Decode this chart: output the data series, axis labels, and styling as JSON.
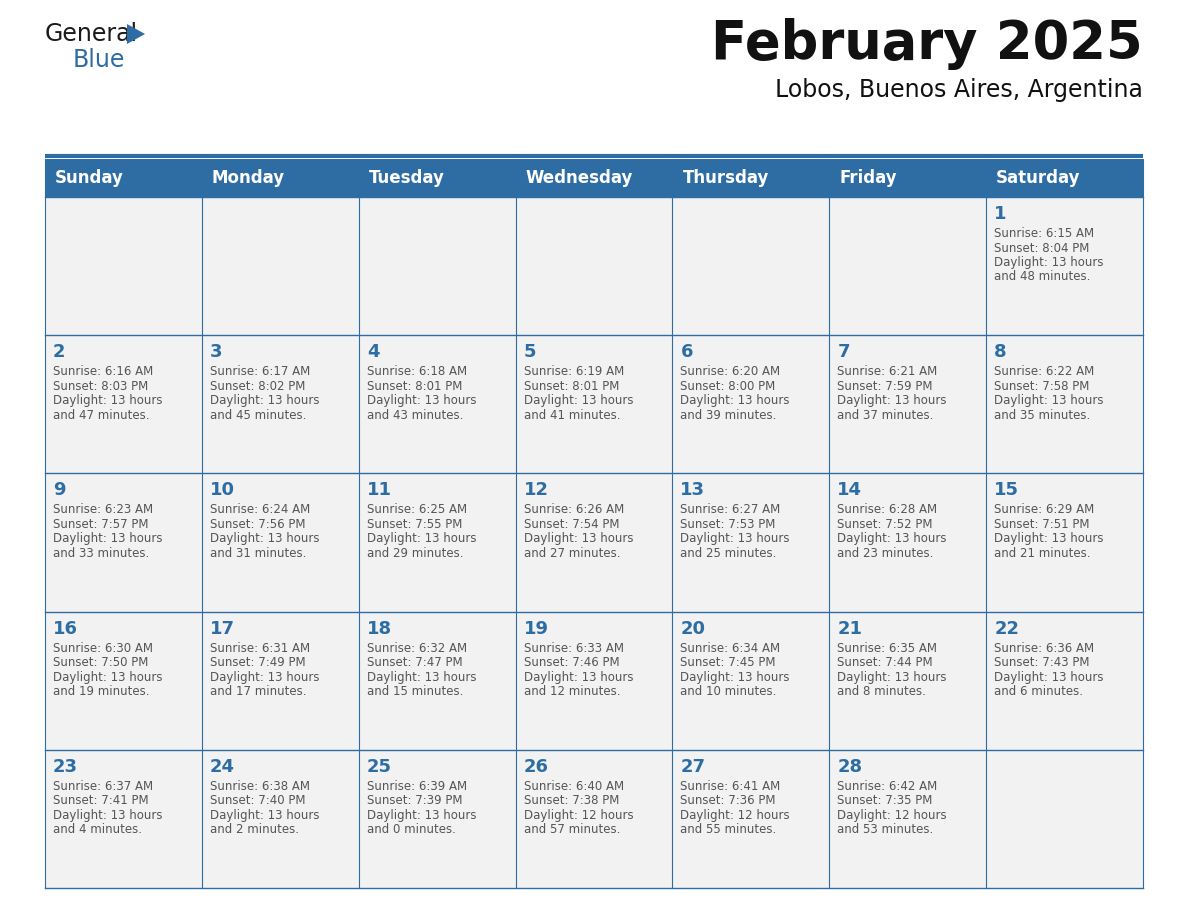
{
  "title": "February 2025",
  "subtitle": "Lobos, Buenos Aires, Argentina",
  "header_bg": "#2E6DA4",
  "header_text_color": "#FFFFFF",
  "cell_bg": "#F2F2F2",
  "day_number_color": "#2E6DA4",
  "cell_text_color": "#555555",
  "line_color": "#2E6DA4",
  "days_of_week": [
    "Sunday",
    "Monday",
    "Tuesday",
    "Wednesday",
    "Thursday",
    "Friday",
    "Saturday"
  ],
  "title_fontsize": 38,
  "subtitle_fontsize": 17,
  "header_fontsize": 12,
  "day_num_fontsize": 13,
  "cell_text_fontsize": 8.5,
  "calendar_data": [
    [
      null,
      null,
      null,
      null,
      null,
      null,
      {
        "day": "1",
        "sunrise": "6:15 AM",
        "sunset": "8:04 PM",
        "daylight_h": "13 hours",
        "daylight_m": "and 48 minutes."
      }
    ],
    [
      {
        "day": "2",
        "sunrise": "6:16 AM",
        "sunset": "8:03 PM",
        "daylight_h": "13 hours",
        "daylight_m": "and 47 minutes."
      },
      {
        "day": "3",
        "sunrise": "6:17 AM",
        "sunset": "8:02 PM",
        "daylight_h": "13 hours",
        "daylight_m": "and 45 minutes."
      },
      {
        "day": "4",
        "sunrise": "6:18 AM",
        "sunset": "8:01 PM",
        "daylight_h": "13 hours",
        "daylight_m": "and 43 minutes."
      },
      {
        "day": "5",
        "sunrise": "6:19 AM",
        "sunset": "8:01 PM",
        "daylight_h": "13 hours",
        "daylight_m": "and 41 minutes."
      },
      {
        "day": "6",
        "sunrise": "6:20 AM",
        "sunset": "8:00 PM",
        "daylight_h": "13 hours",
        "daylight_m": "and 39 minutes."
      },
      {
        "day": "7",
        "sunrise": "6:21 AM",
        "sunset": "7:59 PM",
        "daylight_h": "13 hours",
        "daylight_m": "and 37 minutes."
      },
      {
        "day": "8",
        "sunrise": "6:22 AM",
        "sunset": "7:58 PM",
        "daylight_h": "13 hours",
        "daylight_m": "and 35 minutes."
      }
    ],
    [
      {
        "day": "9",
        "sunrise": "6:23 AM",
        "sunset": "7:57 PM",
        "daylight_h": "13 hours",
        "daylight_m": "and 33 minutes."
      },
      {
        "day": "10",
        "sunrise": "6:24 AM",
        "sunset": "7:56 PM",
        "daylight_h": "13 hours",
        "daylight_m": "and 31 minutes."
      },
      {
        "day": "11",
        "sunrise": "6:25 AM",
        "sunset": "7:55 PM",
        "daylight_h": "13 hours",
        "daylight_m": "and 29 minutes."
      },
      {
        "day": "12",
        "sunrise": "6:26 AM",
        "sunset": "7:54 PM",
        "daylight_h": "13 hours",
        "daylight_m": "and 27 minutes."
      },
      {
        "day": "13",
        "sunrise": "6:27 AM",
        "sunset": "7:53 PM",
        "daylight_h": "13 hours",
        "daylight_m": "and 25 minutes."
      },
      {
        "day": "14",
        "sunrise": "6:28 AM",
        "sunset": "7:52 PM",
        "daylight_h": "13 hours",
        "daylight_m": "and 23 minutes."
      },
      {
        "day": "15",
        "sunrise": "6:29 AM",
        "sunset": "7:51 PM",
        "daylight_h": "13 hours",
        "daylight_m": "and 21 minutes."
      }
    ],
    [
      {
        "day": "16",
        "sunrise": "6:30 AM",
        "sunset": "7:50 PM",
        "daylight_h": "13 hours",
        "daylight_m": "and 19 minutes."
      },
      {
        "day": "17",
        "sunrise": "6:31 AM",
        "sunset": "7:49 PM",
        "daylight_h": "13 hours",
        "daylight_m": "and 17 minutes."
      },
      {
        "day": "18",
        "sunrise": "6:32 AM",
        "sunset": "7:47 PM",
        "daylight_h": "13 hours",
        "daylight_m": "and 15 minutes."
      },
      {
        "day": "19",
        "sunrise": "6:33 AM",
        "sunset": "7:46 PM",
        "daylight_h": "13 hours",
        "daylight_m": "and 12 minutes."
      },
      {
        "day": "20",
        "sunrise": "6:34 AM",
        "sunset": "7:45 PM",
        "daylight_h": "13 hours",
        "daylight_m": "and 10 minutes."
      },
      {
        "day": "21",
        "sunrise": "6:35 AM",
        "sunset": "7:44 PM",
        "daylight_h": "13 hours",
        "daylight_m": "and 8 minutes."
      },
      {
        "day": "22",
        "sunrise": "6:36 AM",
        "sunset": "7:43 PM",
        "daylight_h": "13 hours",
        "daylight_m": "and 6 minutes."
      }
    ],
    [
      {
        "day": "23",
        "sunrise": "6:37 AM",
        "sunset": "7:41 PM",
        "daylight_h": "13 hours",
        "daylight_m": "and 4 minutes."
      },
      {
        "day": "24",
        "sunrise": "6:38 AM",
        "sunset": "7:40 PM",
        "daylight_h": "13 hours",
        "daylight_m": "and 2 minutes."
      },
      {
        "day": "25",
        "sunrise": "6:39 AM",
        "sunset": "7:39 PM",
        "daylight_h": "13 hours",
        "daylight_m": "and 0 minutes."
      },
      {
        "day": "26",
        "sunrise": "6:40 AM",
        "sunset": "7:38 PM",
        "daylight_h": "12 hours",
        "daylight_m": "and 57 minutes."
      },
      {
        "day": "27",
        "sunrise": "6:41 AM",
        "sunset": "7:36 PM",
        "daylight_h": "12 hours",
        "daylight_m": "and 55 minutes."
      },
      {
        "day": "28",
        "sunrise": "6:42 AM",
        "sunset": "7:35 PM",
        "daylight_h": "12 hours",
        "daylight_m": "and 53 minutes."
      },
      null
    ]
  ]
}
